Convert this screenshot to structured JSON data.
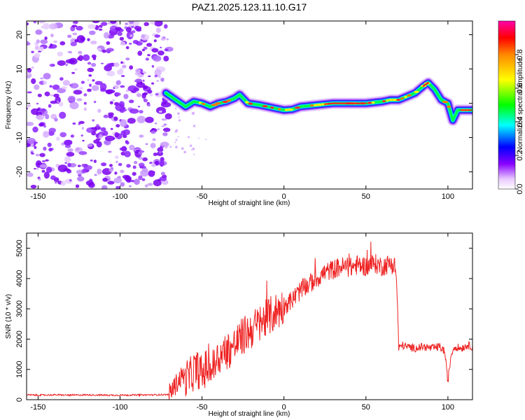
{
  "title": "PAZ1.2025.123.11.10.G17",
  "chart_data": [
    {
      "type": "heatmap",
      "id": "spectrogram",
      "xlabel": "Height of straight line (km)",
      "ylabel": "Frequency (Hz)",
      "xlim": [
        -157,
        115
      ],
      "ylim": [
        -25,
        24
      ],
      "xticks": [
        -150,
        -100,
        -50,
        0,
        50,
        100
      ],
      "yticks": [
        -20,
        -10,
        0,
        10,
        20
      ],
      "noise_region_x": [
        -157,
        -70
      ],
      "ridge_line": {
        "x": [
          -72,
          -66,
          -60,
          -55,
          -50,
          -45,
          -40,
          -35,
          -30,
          -27,
          -22,
          -15,
          -10,
          -5,
          0,
          5,
          10,
          20,
          30,
          40,
          50,
          60,
          65,
          70,
          75,
          80,
          85,
          88,
          92,
          96,
          100,
          103,
          106,
          110,
          115
        ],
        "y": [
          3,
          1,
          -1,
          0.5,
          0,
          -1,
          0,
          0.5,
          1.5,
          2.5,
          0,
          -0.5,
          -1,
          -1.5,
          -2,
          -1.8,
          -1,
          -0.5,
          0,
          0,
          0,
          0.5,
          1,
          1,
          2,
          3,
          5,
          6,
          4,
          1,
          0,
          -5,
          -2,
          -2,
          -2
        ]
      },
      "colorbar": {
        "label": "Normalized spectral amplitude",
        "range": [
          0,
          1
        ],
        "ticks": [
          "0.0",
          "0.2",
          "0.4",
          "0.6",
          "0.8"
        ]
      }
    },
    {
      "type": "line",
      "id": "snr",
      "xlabel": "Height of straight line (km)",
      "ylabel": "SNR (10 * v/v)",
      "xlim": [
        -157,
        115
      ],
      "ylim": [
        0,
        5500
      ],
      "xticks": [
        -150,
        -100,
        -50,
        0,
        50,
        100
      ],
      "yticks": [
        0,
        1000,
        2000,
        3000,
        4000,
        5000
      ],
      "series_color": "#ee2222",
      "x": [
        -157,
        -150,
        -140,
        -130,
        -120,
        -110,
        -100,
        -90,
        -80,
        -70,
        -66,
        -62,
        -58,
        -55,
        -52,
        -50,
        -47,
        -44,
        -40,
        -35,
        -30,
        -25,
        -20,
        -15,
        -10,
        -5,
        0,
        5,
        10,
        15,
        20,
        25,
        30,
        35,
        40,
        45,
        50,
        55,
        60,
        65,
        68,
        69,
        70,
        72,
        75,
        80,
        85,
        90,
        95,
        98,
        100,
        102,
        104,
        108,
        112,
        115
      ],
      "y": [
        160,
        150,
        160,
        150,
        160,
        150,
        150,
        155,
        160,
        170,
        500,
        800,
        700,
        950,
        1000,
        800,
        1100,
        1000,
        1400,
        1600,
        1800,
        2100,
        2300,
        2500,
        2700,
        2900,
        3100,
        3300,
        3600,
        3800,
        4000,
        4200,
        4300,
        4400,
        4350,
        4450,
        4400,
        4500,
        4400,
        4500,
        4400,
        3500,
        1700,
        1800,
        1750,
        1700,
        1750,
        1700,
        1750,
        1600,
        600,
        1500,
        1750,
        1700,
        1800,
        1750
      ]
    }
  ]
}
